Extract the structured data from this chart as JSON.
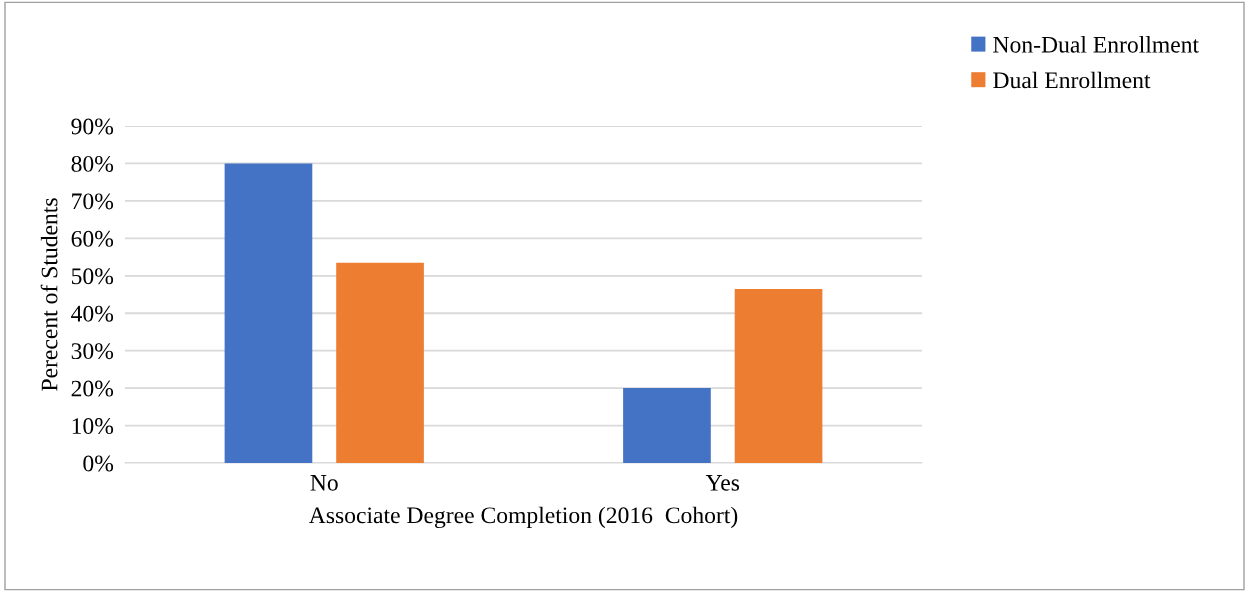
{
  "chart_data": {
    "type": "bar",
    "xlabel": "Associate Degree Completion (2016  Cohort)",
    "ylabel": "Perecent of Students",
    "categories": [
      "No",
      "Yes"
    ],
    "series": [
      {
        "name": "Non-Dual Enrollment",
        "color": "#4472c4",
        "values": [
          80,
          20
        ]
      },
      {
        "name": "Dual Enrollment",
        "color": "#ed7d31",
        "values": [
          53.5,
          46.5
        ]
      }
    ],
    "ylim": [
      0,
      90
    ],
    "yticks": [
      {
        "value": 0,
        "label": "0%"
      },
      {
        "value": 10,
        "label": "10%"
      },
      {
        "value": 20,
        "label": "20%"
      },
      {
        "value": 30,
        "label": "30%"
      },
      {
        "value": 40,
        "label": "40%"
      },
      {
        "value": 50,
        "label": "50%"
      },
      {
        "value": 60,
        "label": "60%"
      },
      {
        "value": 70,
        "label": "70%"
      },
      {
        "value": 80,
        "label": "80%"
      },
      {
        "value": 90,
        "label": "90%"
      }
    ],
    "grid": "y",
    "legend": "top right"
  }
}
